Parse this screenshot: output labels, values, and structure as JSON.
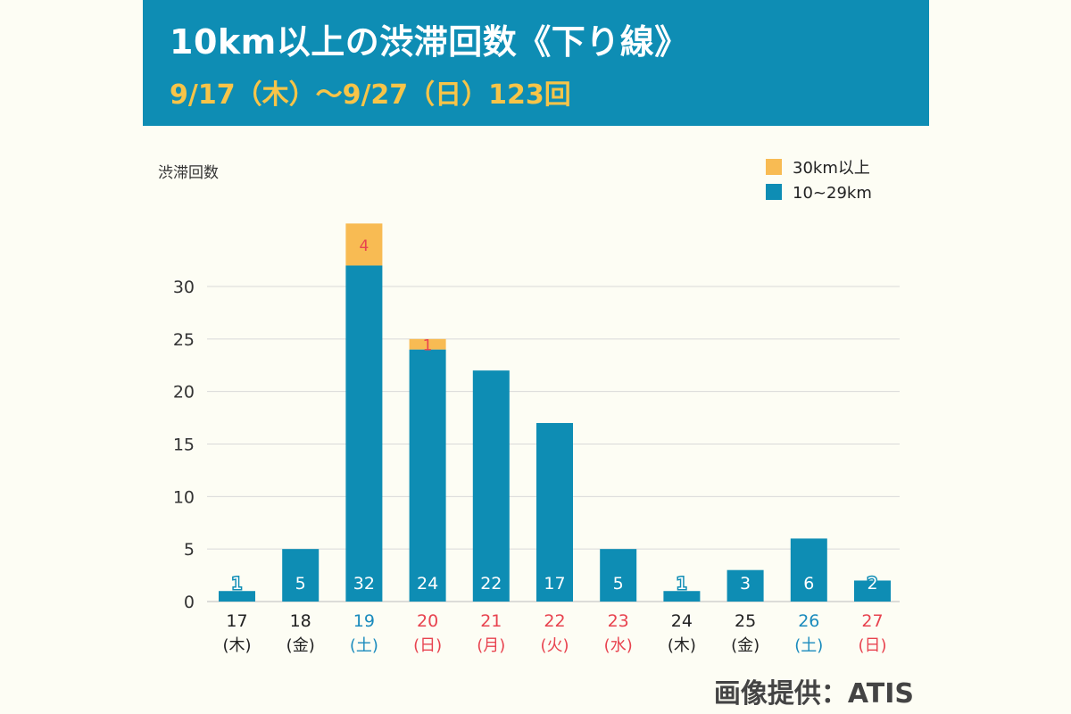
{
  "header": {
    "title": "10km以上の渋滞回数《下り線》",
    "subtitle": "9/17（木）～9/27（日）123回"
  },
  "credit": "画像提供：ATIS",
  "colors": {
    "header_bg": "#0e8db4",
    "subtitle": "#f7c448",
    "bar_main": "#0e8db4",
    "bar_top": "#f8bb53",
    "weekday": "#222222",
    "saturday": "#1a8bbd",
    "holiday": "#e8434f",
    "top_label": "#e8434f"
  },
  "chart_data": {
    "type": "bar",
    "stacked": true,
    "ylabel": "渋滞回数",
    "ylim": [
      0,
      36
    ],
    "yticks": [
      0,
      5,
      10,
      15,
      20,
      25,
      30
    ],
    "grid": true,
    "legend_position": "top-right",
    "categories": [
      {
        "day": "17",
        "weekday": "(木)",
        "kind": "weekday"
      },
      {
        "day": "18",
        "weekday": "(金)",
        "kind": "weekday"
      },
      {
        "day": "19",
        "weekday": "(土)",
        "kind": "saturday"
      },
      {
        "day": "20",
        "weekday": "(日)",
        "kind": "holiday"
      },
      {
        "day": "21",
        "weekday": "(月)",
        "kind": "holiday"
      },
      {
        "day": "22",
        "weekday": "(火)",
        "kind": "holiday"
      },
      {
        "day": "23",
        "weekday": "(水)",
        "kind": "holiday"
      },
      {
        "day": "24",
        "weekday": "(木)",
        "kind": "weekday"
      },
      {
        "day": "25",
        "weekday": "(金)",
        "kind": "weekday"
      },
      {
        "day": "26",
        "weekday": "(土)",
        "kind": "saturday"
      },
      {
        "day": "27",
        "weekday": "(日)",
        "kind": "holiday"
      }
    ],
    "series": [
      {
        "name": "10~29km",
        "color": "#0e8db4",
        "values": [
          1,
          5,
          32,
          24,
          22,
          17,
          5,
          1,
          3,
          6,
          2
        ]
      },
      {
        "name": "30km以上",
        "color": "#f8bb53",
        "values": [
          0,
          0,
          4,
          1,
          0,
          0,
          0,
          0,
          0,
          0,
          0
        ]
      }
    ],
    "legend": [
      {
        "label": "30km以上",
        "color": "#f8bb53"
      },
      {
        "label": "10~29km",
        "color": "#0e8db4"
      }
    ]
  }
}
